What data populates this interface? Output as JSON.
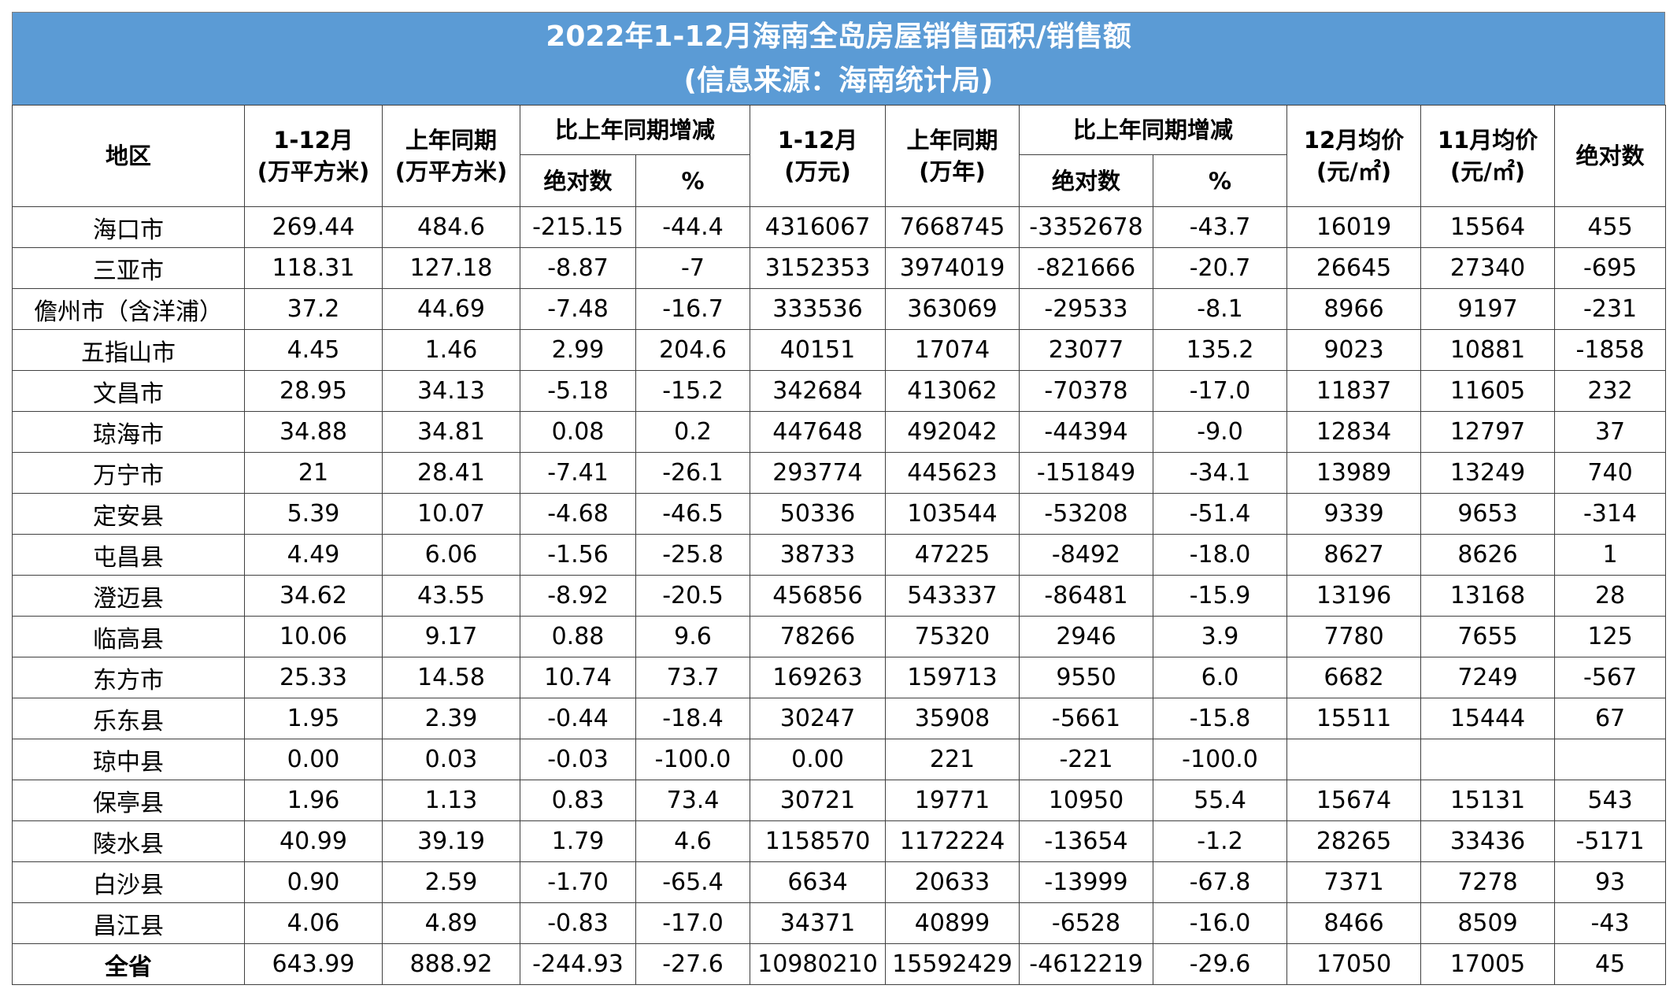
{
  "title": {
    "line1": "2022年1-12月海南全岛房屋销售面积/销售额",
    "line2": "(信息来源：海南统计局)"
  },
  "headers": {
    "region": "地区",
    "area_1_12": [
      "1-12月",
      "(万平方米)"
    ],
    "area_prev": [
      "上年同期",
      "(万平方米)"
    ],
    "area_change": "比上年同期增减",
    "area_abs": "绝对数",
    "area_pct": "%",
    "sales_1_12": [
      "1-12月",
      "(万元)"
    ],
    "sales_prev": [
      "上年同期",
      "(万年)"
    ],
    "sales_change": "比上年同期增减",
    "sales_abs": "绝对数",
    "sales_pct": "%",
    "price_dec": [
      "12月均价",
      "(元/㎡)"
    ],
    "price_nov": [
      "11月均价",
      "(元/㎡)"
    ],
    "price_abs": "绝对数"
  },
  "rows": [
    [
      "海口市",
      "269.44",
      "484.6",
      "-215.15",
      "-44.4",
      "4316067",
      "7668745",
      "-3352678",
      "-43.7",
      "16019",
      "15564",
      "455"
    ],
    [
      "三亚市",
      "118.31",
      "127.18",
      "-8.87",
      "-7",
      "3152353",
      "3974019",
      "-821666",
      "-20.7",
      "26645",
      "27340",
      "-695"
    ],
    [
      "儋州市（含洋浦）",
      "37.2",
      "44.69",
      "-7.48",
      "-16.7",
      "333536",
      "363069",
      "-29533",
      "-8.1",
      "8966",
      "9197",
      "-231"
    ],
    [
      "五指山市",
      "4.45",
      "1.46",
      "2.99",
      "204.6",
      "40151",
      "17074",
      "23077",
      "135.2",
      "9023",
      "10881",
      "-1858"
    ],
    [
      "文昌市",
      "28.95",
      "34.13",
      "-5.18",
      "-15.2",
      "342684",
      "413062",
      "-70378",
      "-17.0",
      "11837",
      "11605",
      "232"
    ],
    [
      "琼海市",
      "34.88",
      "34.81",
      "0.08",
      "0.2",
      "447648",
      "492042",
      "-44394",
      "-9.0",
      "12834",
      "12797",
      "37"
    ],
    [
      "万宁市",
      "21",
      "28.41",
      "-7.41",
      "-26.1",
      "293774",
      "445623",
      "-151849",
      "-34.1",
      "13989",
      "13249",
      "740"
    ],
    [
      "定安县",
      "5.39",
      "10.07",
      "-4.68",
      "-46.5",
      "50336",
      "103544",
      "-53208",
      "-51.4",
      "9339",
      "9653",
      "-314"
    ],
    [
      "屯昌县",
      "4.49",
      "6.06",
      "-1.56",
      "-25.8",
      "38733",
      "47225",
      "-8492",
      "-18.0",
      "8627",
      "8626",
      "1"
    ],
    [
      "澄迈县",
      "34.62",
      "43.55",
      "-8.92",
      "-20.5",
      "456856",
      "543337",
      "-86481",
      "-15.9",
      "13196",
      "13168",
      "28"
    ],
    [
      "临高县",
      "10.06",
      "9.17",
      "0.88",
      "9.6",
      "78266",
      "75320",
      "2946",
      "3.9",
      "7780",
      "7655",
      "125"
    ],
    [
      "东方市",
      "25.33",
      "14.58",
      "10.74",
      "73.7",
      "169263",
      "159713",
      "9550",
      "6.0",
      "6682",
      "7249",
      "-567"
    ],
    [
      "乐东县",
      "1.95",
      "2.39",
      "-0.44",
      "-18.4",
      "30247",
      "35908",
      "-5661",
      "-15.8",
      "15511",
      "15444",
      "67"
    ],
    [
      "琼中县",
      "0.00",
      "0.03",
      "-0.03",
      "-100.0",
      "0.00",
      "221",
      "-221",
      "-100.0",
      "",
      "",
      ""
    ],
    [
      "保亭县",
      "1.96",
      "1.13",
      "0.83",
      "73.4",
      "30721",
      "19771",
      "10950",
      "55.4",
      "15674",
      "15131",
      "543"
    ],
    [
      "陵水县",
      "40.99",
      "39.19",
      "1.79",
      "4.6",
      "1158570",
      "1172224",
      "-13654",
      "-1.2",
      "28265",
      "33436",
      "-5171"
    ],
    [
      "白沙县",
      "0.90",
      "2.59",
      "-1.70",
      "-65.4",
      "6634",
      "20633",
      "-13999",
      "-67.8",
      "7371",
      "7278",
      "93"
    ],
    [
      "昌江县",
      "4.06",
      "4.89",
      "-0.83",
      "-17.0",
      "34371",
      "40899",
      "-6528",
      "-16.0",
      "8466",
      "8509",
      "-43"
    ]
  ],
  "total": [
    "全省",
    "643.99",
    "888.92",
    "-244.93",
    "-27.6",
    "10980210",
    "15592429",
    "-4612219",
    "-29.6",
    "17050",
    "17005",
    "45"
  ],
  "colors": {
    "title_bg": "#5b9bd5",
    "title_text": "#ffffff"
  }
}
